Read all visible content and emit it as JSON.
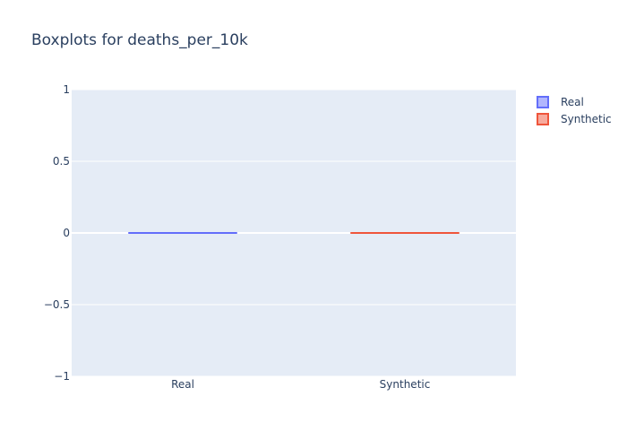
{
  "chart_data": {
    "type": "box",
    "title": "Boxplots for deaths_per_10k",
    "xlabel": "",
    "ylabel": "",
    "categories": [
      "Real",
      "Synthetic"
    ],
    "series": [
      {
        "name": "Real",
        "color": "#636efa",
        "fill": "#b1b6fd",
        "min": 0,
        "q1": 0,
        "median": 0,
        "q3": 0,
        "max": 0
      },
      {
        "name": "Synthetic",
        "color": "#ef553b",
        "fill": "#f7aa9d",
        "min": 0,
        "q1": 0,
        "median": 0,
        "q3": 0,
        "max": 0
      }
    ],
    "ylim": [
      -1,
      1
    ],
    "yticks": [
      1,
      0.5,
      0,
      -0.5,
      -1
    ],
    "ytick_labels": [
      "1",
      "0.5",
      "0",
      "−0.5",
      "−1"
    ],
    "grid": true,
    "legend": {
      "position": "top-right",
      "entries": [
        "Real",
        "Synthetic"
      ]
    },
    "colors": {
      "plot_bg": "#e5ecf6",
      "grid": "#ffffff",
      "text": "#2a3f5f"
    }
  }
}
